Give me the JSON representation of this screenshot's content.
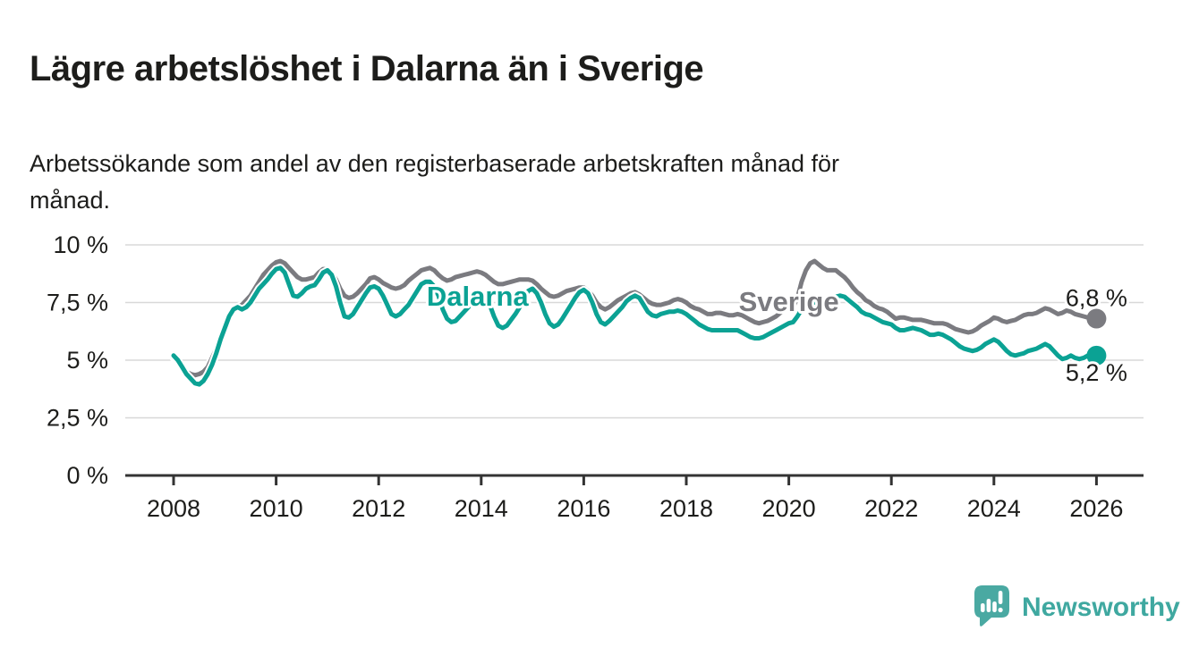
{
  "header": {
    "title": "Lägre arbetslöshet i Dalarna än i Sverige",
    "subtitle": "Arbetssökande som andel av den registerbaserade arbetskraften månad för månad.",
    "subtitle_lines": [
      "Arbetssökande som andel av den registerbaserade arbetskraften månad för",
      "månad."
    ]
  },
  "footer": {
    "brand": "Newsworthy"
  },
  "colors": {
    "text": "#1d1d1b",
    "grid": "#d8d8d8",
    "axis": "#333333",
    "sverige": "#7b7b80",
    "dalarna": "#0ba294",
    "logo_teal": "#3fa8a0",
    "background": "#ffffff"
  },
  "chart_data": {
    "type": "line",
    "title": "Lägre arbetslöshet i Dalarna än i Sverige",
    "subtitle": "Arbetssökande som andel av den registerbaserade arbetskraften månad för månad.",
    "xlabel": "",
    "ylabel": "",
    "grid": true,
    "legend_position": "inline-labels",
    "x_start_year": 2008,
    "points_per_year": 12,
    "xlim": [
      2007.6,
      2026.9
    ],
    "ylim": [
      0,
      10.4
    ],
    "y_ticks": [
      {
        "value": 0,
        "label": "0 %"
      },
      {
        "value": 2.5,
        "label": "2,5 %"
      },
      {
        "value": 5,
        "label": "5 %"
      },
      {
        "value": 7.5,
        "label": "7,5 %"
      },
      {
        "value": 10,
        "label": "10 %"
      }
    ],
    "x_ticks": [
      {
        "value": 2008,
        "label": "2008"
      },
      {
        "value": 2010,
        "label": "2010"
      },
      {
        "value": 2012,
        "label": "2012"
      },
      {
        "value": 2014,
        "label": "2014"
      },
      {
        "value": 2016,
        "label": "2016"
      },
      {
        "value": 2018,
        "label": "2018"
      },
      {
        "value": 2020,
        "label": "2020"
      },
      {
        "value": 2022,
        "label": "2022"
      },
      {
        "value": 2024,
        "label": "2024"
      },
      {
        "value": 2026,
        "label": "2026"
      }
    ],
    "series": [
      {
        "name": "Sverige",
        "color": "#7b7b80",
        "end_value_label": "6,8 %",
        "end_label_position": "above",
        "label_at": {
          "year": 2020.0,
          "value": 7.52
        },
        "values": [
          5.1,
          4.9,
          4.7,
          4.5,
          4.4,
          4.35,
          4.4,
          4.5,
          4.7,
          5.1,
          5.5,
          6.0,
          6.5,
          7.0,
          7.2,
          7.3,
          7.4,
          7.6,
          7.8,
          8.1,
          8.4,
          8.7,
          8.9,
          9.1,
          9.25,
          9.3,
          9.2,
          9.0,
          8.8,
          8.6,
          8.5,
          8.5,
          8.55,
          8.6,
          8.8,
          8.95,
          8.95,
          8.8,
          8.5,
          8.1,
          7.8,
          7.7,
          7.75,
          7.9,
          8.1,
          8.3,
          8.55,
          8.6,
          8.5,
          8.35,
          8.25,
          8.15,
          8.1,
          8.15,
          8.25,
          8.45,
          8.6,
          8.75,
          8.9,
          8.95,
          9.0,
          8.9,
          8.7,
          8.55,
          8.45,
          8.5,
          8.6,
          8.65,
          8.7,
          8.75,
          8.8,
          8.85,
          8.8,
          8.7,
          8.55,
          8.4,
          8.3,
          8.3,
          8.35,
          8.4,
          8.45,
          8.5,
          8.5,
          8.5,
          8.45,
          8.3,
          8.1,
          7.95,
          7.8,
          7.75,
          7.8,
          7.9,
          8.0,
          8.05,
          8.1,
          8.15,
          8.15,
          8.0,
          7.8,
          7.5,
          7.3,
          7.2,
          7.3,
          7.45,
          7.6,
          7.7,
          7.8,
          7.9,
          7.95,
          7.85,
          7.7,
          7.55,
          7.45,
          7.4,
          7.4,
          7.45,
          7.5,
          7.6,
          7.65,
          7.6,
          7.5,
          7.35,
          7.25,
          7.2,
          7.1,
          7.0,
          7.0,
          7.05,
          7.05,
          7.0,
          6.95,
          6.95,
          7.0,
          6.95,
          6.85,
          6.75,
          6.65,
          6.6,
          6.65,
          6.7,
          6.8,
          6.9,
          7.05,
          7.2,
          7.25,
          7.3,
          7.7,
          8.4,
          8.9,
          9.2,
          9.3,
          9.15,
          9.0,
          8.9,
          8.9,
          8.9,
          8.75,
          8.6,
          8.4,
          8.15,
          7.95,
          7.8,
          7.6,
          7.5,
          7.35,
          7.25,
          7.2,
          7.1,
          6.95,
          6.8,
          6.85,
          6.85,
          6.8,
          6.75,
          6.75,
          6.75,
          6.7,
          6.65,
          6.6,
          6.6,
          6.6,
          6.55,
          6.45,
          6.35,
          6.3,
          6.25,
          6.2,
          6.25,
          6.35,
          6.5,
          6.6,
          6.7,
          6.85,
          6.8,
          6.7,
          6.65,
          6.7,
          6.75,
          6.85,
          6.95,
          7.0,
          7.0,
          7.05,
          7.15,
          7.25,
          7.2,
          7.1,
          7.0,
          7.05,
          7.15,
          7.1,
          7.0,
          6.95,
          6.9,
          6.85,
          6.8,
          6.8
        ]
      },
      {
        "name": "Dalarna",
        "color": "#0ba294",
        "end_value_label": "5,2 %",
        "end_label_position": "below",
        "label_at": {
          "year": 2013.93,
          "value": 7.75
        },
        "values": [
          5.2,
          5.0,
          4.7,
          4.4,
          4.2,
          4.0,
          3.95,
          4.1,
          4.4,
          4.8,
          5.3,
          5.9,
          6.4,
          6.9,
          7.2,
          7.3,
          7.2,
          7.3,
          7.5,
          7.8,
          8.1,
          8.3,
          8.5,
          8.75,
          8.95,
          9.0,
          8.8,
          8.3,
          7.8,
          7.75,
          7.9,
          8.1,
          8.2,
          8.25,
          8.5,
          8.8,
          8.9,
          8.7,
          8.2,
          7.5,
          6.9,
          6.85,
          7.0,
          7.3,
          7.6,
          7.9,
          8.15,
          8.2,
          8.1,
          7.8,
          7.4,
          7.0,
          6.9,
          7.0,
          7.2,
          7.4,
          7.7,
          8.0,
          8.3,
          8.4,
          8.4,
          8.2,
          7.8,
          7.2,
          6.8,
          6.65,
          6.7,
          6.9,
          7.1,
          7.3,
          7.6,
          7.8,
          7.85,
          7.7,
          7.4,
          6.9,
          6.5,
          6.4,
          6.5,
          6.75,
          7.0,
          7.3,
          7.7,
          8.0,
          8.1,
          7.9,
          7.5,
          7.0,
          6.6,
          6.45,
          6.55,
          6.8,
          7.1,
          7.4,
          7.7,
          7.95,
          8.05,
          7.9,
          7.5,
          7.0,
          6.65,
          6.55,
          6.7,
          6.9,
          7.1,
          7.3,
          7.55,
          7.7,
          7.8,
          7.7,
          7.4,
          7.1,
          6.95,
          6.9,
          7.0,
          7.05,
          7.1,
          7.1,
          7.15,
          7.1,
          7.0,
          6.85,
          6.7,
          6.55,
          6.45,
          6.35,
          6.3,
          6.3,
          6.3,
          6.3,
          6.3,
          6.3,
          6.3,
          6.2,
          6.1,
          6.0,
          5.95,
          5.95,
          6.0,
          6.1,
          6.2,
          6.3,
          6.4,
          6.5,
          6.6,
          6.65,
          6.9,
          7.2,
          7.4,
          7.5,
          7.5,
          7.5,
          7.55,
          7.6,
          7.7,
          7.75,
          7.8,
          7.75,
          7.6,
          7.45,
          7.3,
          7.1,
          7.0,
          6.95,
          6.85,
          6.75,
          6.65,
          6.6,
          6.55,
          6.4,
          6.3,
          6.3,
          6.35,
          6.4,
          6.35,
          6.3,
          6.2,
          6.1,
          6.1,
          6.15,
          6.1,
          6.0,
          5.9,
          5.75,
          5.6,
          5.5,
          5.45,
          5.4,
          5.45,
          5.55,
          5.7,
          5.8,
          5.9,
          5.8,
          5.6,
          5.4,
          5.25,
          5.2,
          5.25,
          5.3,
          5.4,
          5.45,
          5.5,
          5.6,
          5.7,
          5.6,
          5.4,
          5.2,
          5.05,
          5.1,
          5.2,
          5.1,
          5.05,
          5.1,
          5.2,
          5.2,
          5.2
        ]
      }
    ]
  }
}
